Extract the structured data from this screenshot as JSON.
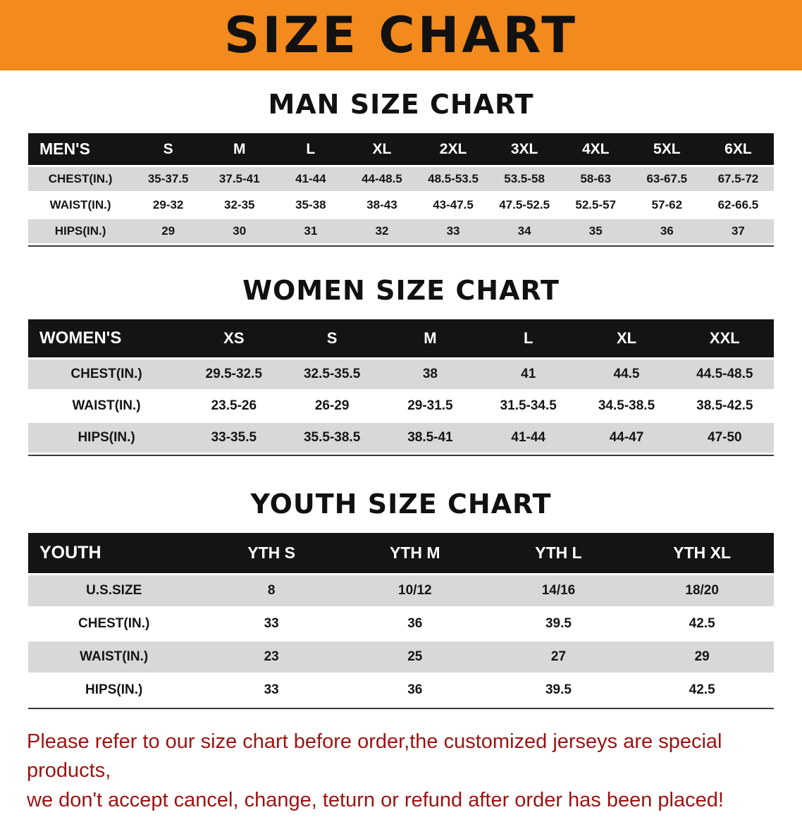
{
  "banner": {
    "title": "SIZE CHART"
  },
  "sections": [
    {
      "title": "MAN SIZE CHART",
      "table": {
        "header": [
          "MEN'S",
          "S",
          "M",
          "L",
          "XL",
          "2XL",
          "3XL",
          "4XL",
          "5XL",
          "6XL"
        ],
        "rows": [
          [
            "CHEST(IN.)",
            "35-37.5",
            "37.5-41",
            "41-44",
            "44-48.5",
            "48.5-53.5",
            "53.5-58",
            "58-63",
            "63-67.5",
            "67.5-72"
          ],
          [
            "WAIST(IN.)",
            "29-32",
            "32-35",
            "35-38",
            "38-43",
            "43-47.5",
            "47.5-52.5",
            "52.5-57",
            "57-62",
            "62-66.5"
          ],
          [
            "HIPS(IN.)",
            "29",
            "30",
            "31",
            "32",
            "33",
            "34",
            "35",
            "36",
            "37"
          ]
        ]
      }
    },
    {
      "title": "WOMEN SIZE CHART",
      "table": {
        "header": [
          "WOMEN'S",
          "XS",
          "S",
          "M",
          "L",
          "XL",
          "XXL"
        ],
        "rows": [
          [
            "CHEST(IN.)",
            "29.5-32.5",
            "32.5-35.5",
            "38",
            "41",
            "44.5",
            "44.5-48.5"
          ],
          [
            "WAIST(IN.)",
            "23.5-26",
            "26-29",
            "29-31.5",
            "31.5-34.5",
            "34.5-38.5",
            "38.5-42.5"
          ],
          [
            "HIPS(IN.)",
            "33-35.5",
            "35.5-38.5",
            "38.5-41",
            "41-44",
            "44-47",
            "47-50"
          ]
        ]
      }
    },
    {
      "title": "YOUTH SIZE CHART",
      "table": {
        "header": [
          "YOUTH",
          "YTH S",
          "YTH M",
          "YTH L",
          "YTH XL"
        ],
        "rows": [
          [
            "U.S.SIZE",
            "8",
            "10/12",
            "14/16",
            "18/20"
          ],
          [
            "CHEST(IN.)",
            "33",
            "36",
            "39.5",
            "42.5"
          ],
          [
            "WAIST(IN.)",
            "23",
            "25",
            "27",
            "29"
          ],
          [
            "HIPS(IN.)",
            "33",
            "36",
            "39.5",
            "42.5"
          ]
        ]
      }
    }
  ],
  "footer": {
    "line1": "Please refer to our size chart before order,the customized jerseys are special products,",
    "line2": "we don't accept cancel, change, teturn or refund after order has been placed!"
  },
  "colors": {
    "banner-bg": "#f28a1d",
    "header-bg": "#141414",
    "stripe": "#d8d8d8",
    "footer-red": "#9e1212"
  }
}
